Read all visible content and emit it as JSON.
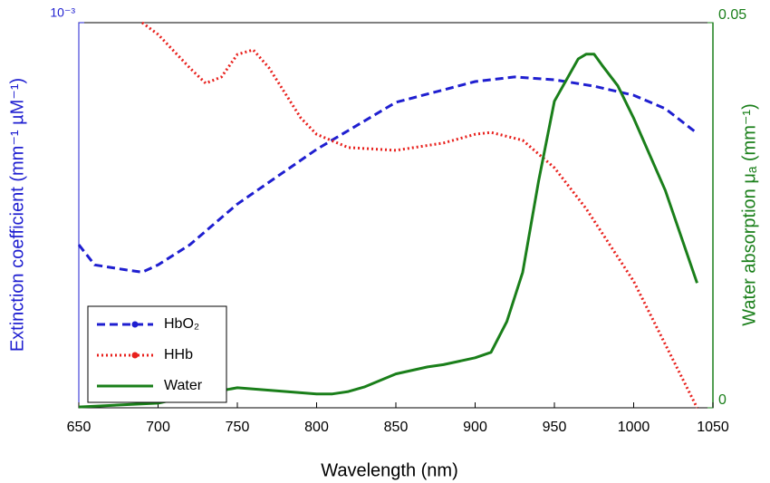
{
  "chart_data": {
    "type": "line",
    "xlabel": "Wavelength (nm)",
    "ylabel": "Extinction coefficient (mm⁻¹ µM⁻¹)",
    "y2label": "Water absorption μₐ (mm⁻¹)",
    "xlim": [
      650,
      1050
    ],
    "xticks": [
      650,
      700,
      750,
      800,
      850,
      900,
      950,
      1000,
      1050
    ],
    "ylim": [
      0.0001,
      0.001
    ],
    "ylog": true,
    "yticks": [
      {
        "value": 0.001,
        "label": "10⁻³"
      }
    ],
    "y2lim": [
      0,
      0.05
    ],
    "y2ticks": [
      0,
      0.05
    ],
    "ycolor": "#1f1fd0",
    "y2color": "#1a7f1a",
    "legend": "lower left",
    "series": [
      {
        "name": "HbO₂",
        "color": "#1f1fd0",
        "linestyle": "dashed",
        "axis": "y",
        "x": [
          650,
          660,
          680,
          690,
          700,
          720,
          750,
          800,
          850,
          900,
          925,
          950,
          975,
          1000,
          1020,
          1040
        ],
        "values": [
          0.000265,
          0.000235,
          0.000228,
          0.000225,
          0.000235,
          0.000265,
          0.000338,
          0.000469,
          0.000621,
          0.000703,
          0.000723,
          0.000711,
          0.000684,
          0.000648,
          0.000598,
          0.000516
        ]
      },
      {
        "name": "HHb",
        "color": "#e8211d",
        "linestyle": "dotted",
        "axis": "y",
        "x": [
          690,
          700,
          720,
          730,
          740,
          750,
          760,
          770,
          790,
          800,
          820,
          850,
          880,
          900,
          910,
          930,
          950,
          970,
          1000,
          1020,
          1040
        ],
        "values": [
          0.001,
          0.000932,
          0.000763,
          0.000696,
          0.000723,
          0.000827,
          0.00085,
          0.000763,
          0.000566,
          0.000513,
          0.000474,
          0.000466,
          0.000487,
          0.000513,
          0.000519,
          0.000495,
          0.00042,
          0.000329,
          0.000213,
          0.000146,
          0.0001
        ]
      },
      {
        "name": "Water",
        "color": "#1a7f1a",
        "linestyle": "solid",
        "axis": "y2",
        "x": [
          650,
          700,
          720,
          750,
          800,
          810,
          820,
          830,
          850,
          870,
          880,
          900,
          910,
          920,
          930,
          940,
          950,
          965,
          970,
          975,
          980,
          990,
          1000,
          1020,
          1040
        ],
        "values": [
          0.0001,
          0.0006,
          0.0015,
          0.0026,
          0.0018,
          0.0018,
          0.0021,
          0.0027,
          0.0044,
          0.0053,
          0.0056,
          0.0065,
          0.0072,
          0.0112,
          0.0176,
          0.0294,
          0.0398,
          0.0453,
          0.0459,
          0.0459,
          0.0445,
          0.0418,
          0.0376,
          0.0282,
          0.0162
        ]
      }
    ]
  }
}
